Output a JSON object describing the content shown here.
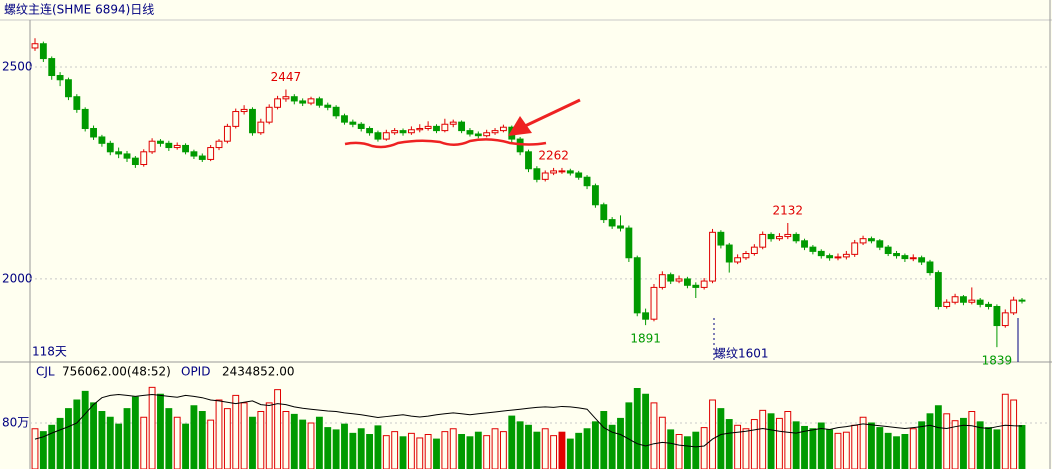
{
  "chart_data": {
    "type": "candlestick",
    "title": "螺纹主连(SHME 6894)日线",
    "open": [
      2545,
      2555,
      2520,
      2480,
      2470,
      2430,
      2400,
      2355,
      2335,
      2320,
      2300,
      2295,
      2285,
      2270,
      2300,
      2325,
      2320,
      2310,
      2315,
      2300,
      2290,
      2282,
      2310,
      2325,
      2360,
      2395,
      2400,
      2345,
      2370,
      2405,
      2425,
      2430,
      2420,
      2415,
      2425,
      2410,
      2405,
      2385,
      2370,
      2365,
      2355,
      2345,
      2330,
      2345,
      2350,
      2345,
      2352,
      2355,
      2360,
      2350,
      2365,
      2370,
      2350,
      2342,
      2338,
      2345,
      2350,
      2358,
      2330,
      2300,
      2260,
      2235,
      2250,
      2255,
      2255,
      2250,
      2240,
      2220,
      2175,
      2140,
      2125,
      2120,
      2050,
      1920,
      1905,
      1980,
      2010,
      1995,
      2000,
      1985,
      1980,
      1995,
      2110,
      2080,
      2040,
      2050,
      2060,
      2075,
      2105,
      2095,
      2100,
      2105,
      2090,
      2075,
      2065,
      2055,
      2050,
      2052,
      2058,
      2085,
      2095,
      2090,
      2075,
      2060,
      2055,
      2048,
      2050,
      2040,
      2015,
      1935,
      1945,
      1958,
      1945,
      1950,
      1940,
      1935,
      1890,
      1920,
      1950
    ],
    "high": [
      2568,
      2560,
      2525,
      2488,
      2475,
      2436,
      2405,
      2362,
      2340,
      2326,
      2310,
      2302,
      2290,
      2306,
      2332,
      2330,
      2326,
      2322,
      2320,
      2305,
      2296,
      2316,
      2330,
      2366,
      2402,
      2410,
      2405,
      2378,
      2412,
      2432,
      2447,
      2436,
      2426,
      2430,
      2430,
      2416,
      2410,
      2390,
      2376,
      2370,
      2360,
      2350,
      2352,
      2356,
      2355,
      2360,
      2365,
      2372,
      2365,
      2378,
      2376,
      2374,
      2356,
      2348,
      2352,
      2356,
      2364,
      2362,
      2335,
      2305,
      2266,
      2256,
      2262,
      2262,
      2260,
      2255,
      2245,
      2225,
      2180,
      2146,
      2150,
      2126,
      2055,
      1930,
      1988,
      2018,
      2015,
      2008,
      2005,
      1992,
      2002,
      2118,
      2115,
      2085,
      2058,
      2066,
      2082,
      2112,
      2110,
      2108,
      2132,
      2110,
      2095,
      2080,
      2070,
      2060,
      2060,
      2066,
      2092,
      2102,
      2100,
      2094,
      2080,
      2066,
      2060,
      2058,
      2055,
      2045,
      2020,
      1952,
      1965,
      1962,
      1980,
      1955,
      1946,
      1940,
      1928,
      1958,
      1955
    ],
    "low": [
      2538,
      2512,
      2470,
      2455,
      2422,
      2392,
      2348,
      2328,
      2312,
      2292,
      2285,
      2276,
      2262,
      2265,
      2295,
      2312,
      2302,
      2305,
      2294,
      2283,
      2276,
      2278,
      2304,
      2320,
      2355,
      2388,
      2338,
      2340,
      2365,
      2400,
      2418,
      2412,
      2408,
      2410,
      2404,
      2398,
      2378,
      2364,
      2358,
      2348,
      2338,
      2324,
      2326,
      2340,
      2338,
      2340,
      2346,
      2350,
      2344,
      2346,
      2358,
      2344,
      2336,
      2332,
      2334,
      2340,
      2346,
      2322,
      2292,
      2252,
      2228,
      2230,
      2245,
      2248,
      2244,
      2234,
      2212,
      2168,
      2132,
      2118,
      2112,
      2040,
      1912,
      1891,
      1900,
      1975,
      1988,
      1990,
      1978,
      1955,
      1975,
      1990,
      2072,
      2015,
      2035,
      2045,
      2055,
      2070,
      2088,
      2090,
      2094,
      2084,
      2068,
      2058,
      2048,
      2043,
      2044,
      2046,
      2052,
      2080,
      2084,
      2068,
      2054,
      2048,
      2040,
      2042,
      2033,
      2008,
      1928,
      1930,
      1940,
      1938,
      1940,
      1933,
      1928,
      1839,
      1885,
      1915,
      1942
    ],
    "close": [
      2555,
      2520,
      2480,
      2470,
      2430,
      2400,
      2355,
      2335,
      2320,
      2300,
      2295,
      2285,
      2270,
      2300,
      2325,
      2320,
      2310,
      2315,
      2300,
      2290,
      2282,
      2310,
      2325,
      2360,
      2395,
      2400,
      2345,
      2370,
      2405,
      2425,
      2430,
      2420,
      2415,
      2425,
      2410,
      2405,
      2385,
      2370,
      2365,
      2355,
      2345,
      2330,
      2345,
      2350,
      2345,
      2352,
      2355,
      2360,
      2350,
      2365,
      2370,
      2350,
      2342,
      2338,
      2345,
      2350,
      2358,
      2330,
      2300,
      2260,
      2235,
      2250,
      2255,
      2255,
      2250,
      2240,
      2220,
      2175,
      2140,
      2125,
      2120,
      2050,
      1920,
      1905,
      1980,
      2010,
      1995,
      2000,
      1985,
      1980,
      1995,
      2110,
      2080,
      2040,
      2050,
      2060,
      2075,
      2105,
      2095,
      2100,
      2105,
      2090,
      2075,
      2065,
      2055,
      2050,
      2052,
      2058,
      2085,
      2095,
      2090,
      2075,
      2060,
      2055,
      2048,
      2050,
      2040,
      2015,
      1935,
      1945,
      1958,
      1945,
      1950,
      1940,
      1935,
      1890,
      1920,
      1950,
      1948
    ],
    "ylim": [
      1804,
      2611
    ],
    "yticks": [
      2000,
      2500
    ],
    "grid": true,
    "up_color": "#e00000",
    "down_color": "#009a00",
    "annotations": [
      2447,
      2262,
      1891,
      2132,
      1839
    ],
    "days_label": "118天",
    "rollover_label": "螺纹1601",
    "volume_header": {
      "label": "CJL",
      "value": "756062.00(48:52)",
      "oi_label": "OPID",
      "oi_value": "2434852.00"
    },
    "volume": [
      700000,
      650000,
      760000,
      880000,
      1050000,
      1200000,
      1350000,
      1150000,
      1000000,
      900000,
      780000,
      1050000,
      1250000,
      900000,
      1420000,
      1300000,
      1050000,
      900000,
      780000,
      1100000,
      1000000,
      850000,
      1200000,
      1050000,
      1280000,
      1150000,
      900000,
      1000000,
      1150000,
      1380000,
      1000000,
      950000,
      850000,
      800000,
      900000,
      720000,
      680000,
      780000,
      620000,
      700000,
      600000,
      750000,
      580000,
      650000,
      560000,
      620000,
      540000,
      600000,
      520000,
      650000,
      700000,
      600000,
      560000,
      640000,
      580000,
      700000,
      650000,
      920000,
      820000,
      760000,
      640000,
      700000,
      580000,
      640000,
      520000,
      620000,
      700000,
      820000,
      1000000,
      760000,
      880000,
      1150000,
      1400000,
      1300000,
      1150000,
      900000,
      680000,
      600000,
      560000,
      640000,
      720000,
      1200000,
      1050000,
      860000,
      760000,
      700000,
      860000,
      1020000,
      960000,
      880000,
      1000000,
      820000,
      740000,
      700000,
      800000,
      680000,
      620000,
      640000,
      760000,
      900000,
      800000,
      720000,
      620000,
      560000,
      600000,
      700000,
      820000,
      960000,
      1100000,
      960000,
      840000,
      880000,
      1000000,
      820000,
      720000,
      680000,
      1300000,
      1200000,
      756062
    ],
    "volume_ylim": [
      0,
      1600000
    ],
    "volume_yticks": [
      {
        "value": 800000,
        "label": "80万"
      }
    ],
    "open_interest": [
      2150000,
      2200000,
      2280000,
      2350000,
      2420000,
      2500000,
      2700000,
      2900000,
      3050000,
      3100000,
      3120000,
      3100000,
      3080000,
      3100000,
      3120000,
      3100000,
      3080000,
      3060000,
      3100000,
      3080000,
      3050000,
      3000000,
      2980000,
      2950000,
      2920000,
      2950000,
      2980000,
      2900000,
      2880000,
      2920000,
      2900000,
      2850000,
      2820000,
      2800000,
      2780000,
      2760000,
      2750000,
      2720000,
      2700000,
      2680000,
      2650000,
      2620000,
      2640000,
      2660000,
      2680000,
      2650000,
      2630000,
      2650000,
      2680000,
      2700000,
      2720000,
      2700000,
      2680000,
      2700000,
      2720000,
      2740000,
      2760000,
      2780000,
      2800000,
      2820000,
      2840000,
      2850000,
      2840000,
      2860000,
      2850000,
      2830000,
      2800000,
      2600000,
      2400000,
      2300000,
      2250000,
      2150000,
      2050000,
      2000000,
      2050000,
      2080000,
      2060000,
      2020000,
      2000000,
      1980000,
      2000000,
      2150000,
      2250000,
      2280000,
      2300000,
      2320000,
      2350000,
      2380000,
      2350000,
      2320000,
      2300000,
      2280000,
      2320000,
      2350000,
      2380000,
      2360000,
      2400000,
      2420000,
      2450000,
      2480000,
      2460000,
      2440000,
      2420000,
      2400000,
      2380000,
      2400000,
      2420000,
      2450000,
      2400000,
      2380000,
      2420000,
      2450000,
      2440000,
      2400000,
      2380000,
      2420000,
      2450000,
      2440000,
      2434852
    ],
    "oi_ylim": [
      1500000,
      3500000
    ],
    "oi_color": "#000000"
  }
}
